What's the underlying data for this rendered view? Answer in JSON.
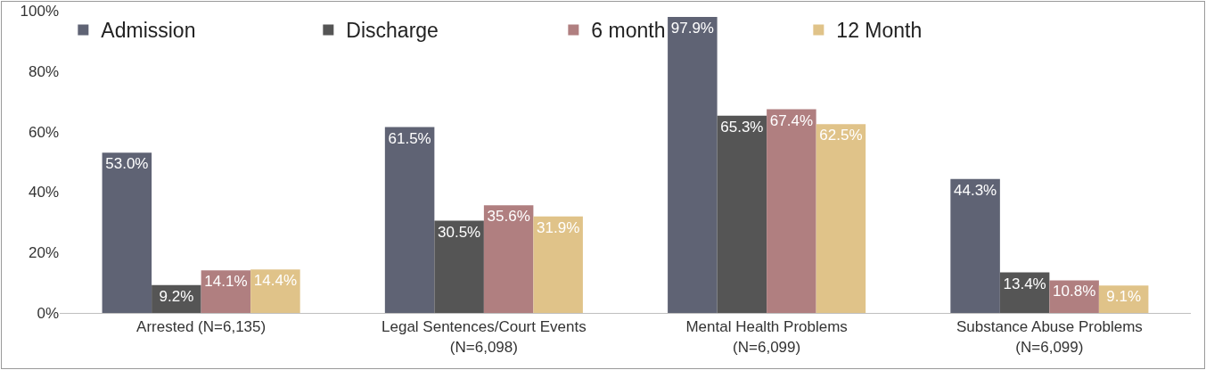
{
  "chart_data": {
    "type": "bar",
    "categories": [
      "Arrested (N=6,135)",
      "Legal Sentences/Court Events\n(N=6,098)",
      "Mental Health Problems\n(N=6,099)",
      "Substance Abuse Problems\n(N=6,099)"
    ],
    "series": [
      {
        "name": "Admission",
        "color": "#5f6374",
        "values": [
          53.0,
          61.5,
          97.9,
          44.3
        ],
        "value_labels": [
          "53.0%",
          "61.5%",
          "97.9%",
          "44.3%"
        ]
      },
      {
        "name": "Discharge",
        "color": "#555555",
        "values": [
          9.2,
          30.5,
          65.3,
          13.4
        ],
        "value_labels": [
          "9.2%",
          "30.5%",
          "65.3%",
          "13.4%"
        ]
      },
      {
        "name": "6 month",
        "color": "#b07f80",
        "values": [
          14.1,
          35.6,
          67.4,
          10.8
        ],
        "value_labels": [
          "14.1%",
          "35.6%",
          "67.4%",
          "10.8%"
        ]
      },
      {
        "name": "12 Month",
        "color": "#e0c389",
        "values": [
          14.4,
          31.9,
          62.5,
          9.1
        ],
        "value_labels": [
          "14.4%",
          "31.9%",
          "62.5%",
          "9.1%"
        ]
      }
    ],
    "ylim": [
      0,
      100
    ],
    "yticks": [
      {
        "value": 0,
        "label": "0%"
      },
      {
        "value": 20,
        "label": "20%"
      },
      {
        "value": 40,
        "label": "40%"
      },
      {
        "value": 60,
        "label": "60%"
      },
      {
        "value": 80,
        "label": "80%"
      },
      {
        "value": 100,
        "label": "100%"
      }
    ],
    "grid": false,
    "legend": "top left"
  }
}
